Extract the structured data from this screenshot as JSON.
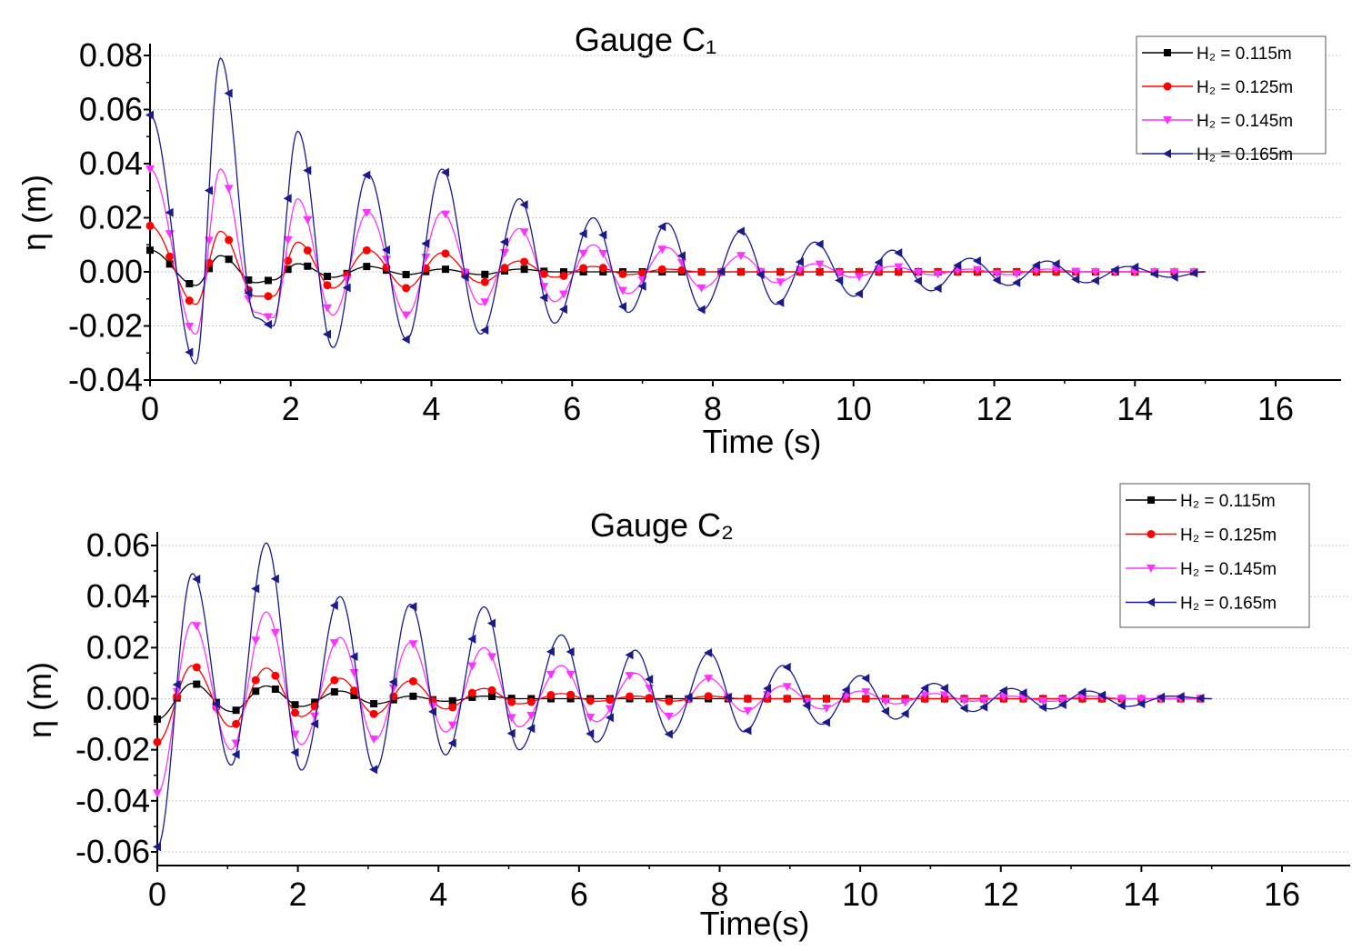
{
  "chart_data": [
    {
      "type": "line",
      "title": "Gauge C₁",
      "xlabel": "Time (s)",
      "ylabel": "η (m)",
      "xlim": [
        0,
        16
      ],
      "ylim": [
        -0.04,
        0.08
      ],
      "xticks": [
        "0",
        "2",
        "4",
        "6",
        "8",
        "10",
        "12",
        "14",
        "16"
      ],
      "yticks": [
        "-0.04",
        "-0.02",
        "0.00",
        "0.02",
        "0.04",
        "0.06",
        "0.08"
      ],
      "grid": true,
      "legend_position": "top-right",
      "extrema_times": [
        0,
        0.65,
        1.0,
        1.5,
        1.75,
        2.1,
        2.6,
        3.1,
        3.65,
        4.15,
        4.7,
        5.25,
        5.75,
        6.3,
        6.8,
        7.35,
        7.85,
        8.4,
        8.9,
        9.45,
        10,
        10.55,
        11.1,
        11.65,
        12.2,
        12.75,
        13.3,
        13.9,
        14.5,
        15
      ],
      "series": [
        {
          "name": "H₂ = 0.115m",
          "color": "#000000",
          "marker": "square",
          "values": [
            0.008,
            -0.005,
            0.006,
            -0.004,
            -0.003,
            0.003,
            -0.002,
            0.002,
            -0.001,
            0.001,
            -0.001,
            0.001,
            0,
            0,
            0,
            0,
            0,
            0,
            0,
            0,
            0,
            0,
            0,
            0,
            0,
            0,
            0,
            0,
            0,
            0
          ]
        },
        {
          "name": "H₂ = 0.125m",
          "color": "#ff0000",
          "marker": "circle",
          "values": [
            0.017,
            -0.012,
            0.015,
            -0.009,
            -0.009,
            0.011,
            -0.006,
            0.008,
            -0.006,
            0.007,
            -0.004,
            0.004,
            -0.002,
            0.002,
            -0.001,
            0.001,
            0,
            0,
            0,
            0,
            0,
            0,
            0,
            0,
            0,
            0,
            0,
            0,
            0,
            0
          ]
        },
        {
          "name": "H₂ = 0.145m",
          "color": "#ff33ff",
          "marker": "triangle-down",
          "values": [
            0.038,
            -0.023,
            0.038,
            -0.015,
            -0.017,
            0.027,
            -0.016,
            0.022,
            -0.016,
            0.022,
            -0.012,
            0.016,
            -0.011,
            0.01,
            -0.008,
            0.009,
            -0.006,
            0.006,
            -0.004,
            0.003,
            -0.002,
            0.002,
            -0.001,
            0.001,
            -0.001,
            0.001,
            0,
            0,
            0,
            0
          ]
        },
        {
          "name": "H₂ = 0.165m",
          "color": "#1a1a8c",
          "marker": "triangle-left",
          "values": [
            0.058,
            -0.034,
            0.079,
            -0.017,
            -0.02,
            0.052,
            -0.028,
            0.036,
            -0.025,
            0.038,
            -0.023,
            0.027,
            -0.019,
            0.02,
            -0.015,
            0.018,
            -0.014,
            0.015,
            -0.012,
            0.011,
            -0.009,
            0.008,
            -0.007,
            0.005,
            -0.005,
            0.004,
            -0.004,
            0.002,
            -0.002,
            0
          ]
        }
      ]
    },
    {
      "type": "line",
      "title": "Gauge C₂",
      "xlabel": "Time(s)",
      "ylabel": "η (m)",
      "xlim": [
        0,
        16
      ],
      "ylim": [
        -0.065,
        0.065
      ],
      "xticks": [
        "0",
        "2",
        "4",
        "6",
        "8",
        "10",
        "12",
        "14",
        "16"
      ],
      "yticks": [
        "-0.06",
        "-0.04",
        "-0.02",
        "0.00",
        "0.02",
        "0.04",
        "0.06"
      ],
      "grid": true,
      "legend_position": "top-right",
      "extrema_times": [
        0,
        0.5,
        1.05,
        1.55,
        2.05,
        2.6,
        3.1,
        3.6,
        4.1,
        4.65,
        5.15,
        5.75,
        6.25,
        6.8,
        7.3,
        7.85,
        8.35,
        8.9,
        9.45,
        10,
        10.5,
        11.05,
        11.6,
        12.15,
        12.7,
        13.25,
        13.8,
        14.4,
        15
      ],
      "series": [
        {
          "name": "H₂ = 0.115m",
          "color": "#000000",
          "marker": "square",
          "values": [
            -0.008,
            0.006,
            -0.005,
            0.005,
            -0.003,
            0.003,
            -0.002,
            0.001,
            -0.001,
            0.001,
            0,
            0,
            0,
            0,
            0,
            0,
            0,
            0,
            0,
            0,
            0,
            0,
            0,
            0,
            0,
            0,
            0,
            0,
            0
          ]
        },
        {
          "name": "H₂ = 0.125m",
          "color": "#ff0000",
          "marker": "circle",
          "values": [
            -0.017,
            0.013,
            -0.011,
            0.012,
            -0.007,
            0.008,
            -0.006,
            0.007,
            -0.004,
            0.004,
            -0.002,
            0.002,
            -0.001,
            0.001,
            -0.001,
            0.001,
            0,
            0,
            0,
            0,
            0,
            0,
            0,
            0,
            0,
            0,
            0,
            0,
            0
          ]
        },
        {
          "name": "H₂ = 0.145m",
          "color": "#ff33ff",
          "marker": "triangle-down",
          "values": [
            -0.037,
            0.03,
            -0.02,
            0.034,
            -0.018,
            0.024,
            -0.016,
            0.022,
            -0.013,
            0.02,
            -0.011,
            0.013,
            -0.009,
            0.01,
            -0.007,
            0.008,
            -0.005,
            0.005,
            -0.004,
            0.003,
            -0.002,
            0.002,
            -0.001,
            0.001,
            -0.001,
            0.001,
            0,
            0,
            0
          ]
        },
        {
          "name": "H₂ = 0.165m",
          "color": "#1a1a8c",
          "marker": "triangle-left",
          "values": [
            -0.058,
            0.049,
            -0.026,
            0.061,
            -0.028,
            0.04,
            -0.028,
            0.037,
            -0.022,
            0.036,
            -0.02,
            0.025,
            -0.017,
            0.019,
            -0.014,
            0.018,
            -0.013,
            0.013,
            -0.01,
            0.009,
            -0.008,
            0.006,
            -0.005,
            0.004,
            -0.004,
            0.003,
            -0.003,
            0.001,
            0
          ]
        }
      ]
    }
  ]
}
